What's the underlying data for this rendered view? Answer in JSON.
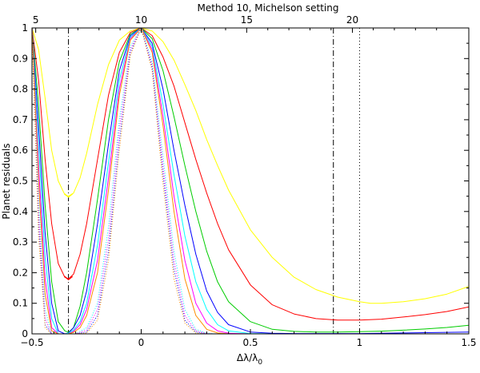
{
  "chart_data": {
    "type": "line",
    "title": "Method 10, Michelson setting",
    "xlabel": "Δλ/λ",
    "xlabel_subscript": "0",
    "ylabel": "Planet residuals",
    "xlim": [
      -0.5,
      1.5
    ],
    "ylim": [
      0,
      1
    ],
    "x_ticks": [
      "−0.5",
      "0",
      "0.5",
      "1",
      "1.5"
    ],
    "y_ticks": [
      "0",
      "0.1",
      "0.2",
      "0.3",
      "0.4",
      "0.5",
      "0.6",
      "0.7",
      "0.8",
      "0.9",
      "1"
    ],
    "top_axis": {
      "ticks": [
        "5",
        "10",
        "15",
        "20"
      ],
      "tick_positions_x": [
        -0.483,
        0,
        0.483,
        0.967
      ]
    },
    "grid": false,
    "legend": "none",
    "vertical_lines": [
      {
        "x": -0.333,
        "style": "dash-dot"
      },
      {
        "x": 0.88,
        "style": "dash-dot"
      },
      {
        "x": 1.0,
        "style": "dotted"
      }
    ],
    "series": [
      {
        "color": "#ffff00",
        "style": "solid",
        "min_x": -0.333,
        "min_y": 0.45,
        "x": [
          -0.5,
          -0.47,
          -0.44,
          -0.41,
          -0.38,
          -0.35,
          -0.333,
          -0.31,
          -0.28,
          -0.25,
          -0.2,
          -0.15,
          -0.1,
          -0.05,
          0,
          0.05,
          0.1,
          0.15,
          0.2,
          0.25,
          0.3,
          0.35,
          0.4,
          0.5,
          0.6,
          0.7,
          0.8,
          0.9,
          1.0,
          1.05,
          1.1,
          1.2,
          1.3,
          1.4,
          1.5
        ],
        "y": [
          1.0,
          0.93,
          0.77,
          0.6,
          0.5,
          0.455,
          0.45,
          0.46,
          0.51,
          0.59,
          0.75,
          0.88,
          0.96,
          0.99,
          1.0,
          0.99,
          0.955,
          0.895,
          0.815,
          0.73,
          0.635,
          0.55,
          0.47,
          0.34,
          0.25,
          0.185,
          0.145,
          0.12,
          0.105,
          0.1,
          0.1,
          0.105,
          0.115,
          0.13,
          0.155
        ]
      },
      {
        "color": "#ff0000",
        "style": "solid",
        "min_x": -0.333,
        "min_y": 0.18,
        "x": [
          -0.5,
          -0.47,
          -0.44,
          -0.41,
          -0.38,
          -0.35,
          -0.333,
          -0.31,
          -0.28,
          -0.25,
          -0.2,
          -0.15,
          -0.1,
          -0.05,
          0,
          0.05,
          0.1,
          0.15,
          0.2,
          0.25,
          0.3,
          0.35,
          0.4,
          0.5,
          0.6,
          0.7,
          0.8,
          0.9,
          1.0,
          1.1,
          1.2,
          1.3,
          1.4,
          1.5
        ],
        "y": [
          1.0,
          0.83,
          0.57,
          0.36,
          0.23,
          0.185,
          0.18,
          0.195,
          0.26,
          0.36,
          0.57,
          0.78,
          0.92,
          0.985,
          1.0,
          0.975,
          0.905,
          0.81,
          0.69,
          0.57,
          0.46,
          0.36,
          0.275,
          0.16,
          0.095,
          0.065,
          0.05,
          0.045,
          0.045,
          0.048,
          0.055,
          0.063,
          0.073,
          0.088
        ]
      },
      {
        "color": "#00cc00",
        "style": "solid",
        "x": [
          -0.5,
          -0.47,
          -0.44,
          -0.41,
          -0.38,
          -0.35,
          -0.333,
          -0.31,
          -0.28,
          -0.25,
          -0.2,
          -0.15,
          -0.1,
          -0.05,
          0,
          0.05,
          0.1,
          0.15,
          0.2,
          0.25,
          0.3,
          0.35,
          0.4,
          0.5,
          0.6,
          0.7,
          0.8,
          0.9,
          1.0,
          1.1,
          1.2,
          1.3,
          1.4,
          1.5
        ],
        "y": [
          1.0,
          0.75,
          0.42,
          0.17,
          0.04,
          0.01,
          0.005,
          0.02,
          0.09,
          0.2,
          0.44,
          0.7,
          0.89,
          0.98,
          1.0,
          0.965,
          0.86,
          0.71,
          0.55,
          0.4,
          0.27,
          0.17,
          0.105,
          0.04,
          0.015,
          0.008,
          0.006,
          0.006,
          0.007,
          0.009,
          0.012,
          0.016,
          0.021,
          0.028
        ]
      },
      {
        "color": "#0000ff",
        "style": "solid",
        "x": [
          -0.5,
          -0.47,
          -0.44,
          -0.41,
          -0.38,
          -0.35,
          -0.333,
          -0.31,
          -0.28,
          -0.25,
          -0.2,
          -0.15,
          -0.1,
          -0.05,
          0,
          0.05,
          0.1,
          0.15,
          0.2,
          0.25,
          0.3,
          0.35,
          0.4,
          0.5,
          0.6,
          0.7,
          0.8,
          0.9,
          1.0,
          1.1,
          1.2,
          1.3,
          1.4,
          1.5
        ],
        "y": [
          1.0,
          0.68,
          0.33,
          0.1,
          0.01,
          0.0,
          0.003,
          0.02,
          0.06,
          0.14,
          0.36,
          0.62,
          0.86,
          0.975,
          1.0,
          0.95,
          0.8,
          0.6,
          0.42,
          0.26,
          0.14,
          0.07,
          0.03,
          0.006,
          0.002,
          0.001,
          0.001,
          0.001,
          0.001,
          0.002,
          0.003,
          0.004,
          0.005,
          0.006
        ]
      },
      {
        "color": "#00ffff",
        "style": "solid",
        "x": [
          -0.5,
          -0.47,
          -0.44,
          -0.41,
          -0.38,
          -0.35,
          -0.333,
          -0.31,
          -0.28,
          -0.25,
          -0.2,
          -0.15,
          -0.1,
          -0.05,
          0,
          0.05,
          0.1,
          0.15,
          0.2,
          0.25,
          0.3,
          0.35,
          0.4,
          0.5,
          0.6,
          0.8,
          1.0,
          1.2,
          1.5
        ],
        "y": [
          1.0,
          0.62,
          0.25,
          0.05,
          0.0,
          0.0,
          0.002,
          0.012,
          0.04,
          0.1,
          0.29,
          0.56,
          0.83,
          0.97,
          1.0,
          0.94,
          0.75,
          0.52,
          0.32,
          0.17,
          0.08,
          0.03,
          0.01,
          0.001,
          0.0,
          0.0,
          0.0,
          0.0,
          0.0
        ]
      },
      {
        "color": "#ff00ff",
        "style": "solid",
        "x": [
          -0.5,
          -0.47,
          -0.44,
          -0.41,
          -0.38,
          -0.35,
          -0.333,
          -0.31,
          -0.28,
          -0.25,
          -0.2,
          -0.15,
          -0.1,
          -0.05,
          0,
          0.05,
          0.1,
          0.15,
          0.2,
          0.25,
          0.3,
          0.35,
          0.4,
          0.5,
          0.6,
          0.8,
          1.0,
          1.2,
          1.5
        ],
        "y": [
          1.0,
          0.55,
          0.18,
          0.02,
          0.0,
          0.0,
          0.0,
          0.008,
          0.03,
          0.08,
          0.24,
          0.51,
          0.8,
          0.965,
          1.0,
          0.93,
          0.71,
          0.45,
          0.24,
          0.1,
          0.035,
          0.01,
          0.002,
          0.0,
          0.0,
          0.0,
          0.0,
          0.0,
          0.0
        ]
      },
      {
        "color": "#ff8c00",
        "style": "solid",
        "x": [
          -0.5,
          -0.47,
          -0.44,
          -0.41,
          -0.38,
          -0.35,
          -0.333,
          -0.31,
          -0.28,
          -0.25,
          -0.2,
          -0.15,
          -0.1,
          -0.05,
          0,
          0.05,
          0.1,
          0.15,
          0.2,
          0.25,
          0.3,
          0.35,
          0.4,
          0.5,
          0.6,
          0.8,
          1.0,
          1.2,
          1.5
        ],
        "y": [
          1.0,
          0.5,
          0.13,
          0.01,
          0.0,
          0.0,
          0.0,
          0.005,
          0.02,
          0.06,
          0.2,
          0.47,
          0.78,
          0.96,
          1.0,
          0.92,
          0.68,
          0.4,
          0.18,
          0.06,
          0.015,
          0.003,
          0.0,
          0.0,
          0.0,
          0.0,
          0.0,
          0.0,
          0.0
        ]
      },
      {
        "color": "#00ffff",
        "style": "dotted",
        "x": [
          -0.5,
          -0.47,
          -0.44,
          -0.41,
          -0.38,
          -0.35,
          -0.3,
          -0.25,
          -0.2,
          -0.15,
          -0.1,
          -0.05,
          0,
          0.05,
          0.1,
          0.15,
          0.2,
          0.25,
          0.3,
          0.35,
          0.5,
          0.8,
          1.0,
          1.5
        ],
        "y": [
          1.0,
          0.45,
          0.08,
          0.0,
          0.0,
          0.0,
          0.0,
          0.02,
          0.1,
          0.35,
          0.7,
          0.94,
          1.0,
          0.89,
          0.58,
          0.27,
          0.08,
          0.015,
          0.002,
          0.0,
          0.0,
          0.0,
          0.0,
          0.0
        ]
      },
      {
        "color": "#ff00ff",
        "style": "dotted",
        "x": [
          -0.5,
          -0.47,
          -0.44,
          -0.41,
          -0.38,
          -0.35,
          -0.3,
          -0.25,
          -0.2,
          -0.15,
          -0.1,
          -0.05,
          0,
          0.05,
          0.1,
          0.15,
          0.2,
          0.25,
          0.3,
          0.35,
          0.5,
          0.8,
          1.0,
          1.5
        ],
        "y": [
          1.0,
          0.4,
          0.05,
          0.0,
          0.0,
          0.0,
          0.0,
          0.012,
          0.08,
          0.31,
          0.67,
          0.93,
          1.0,
          0.88,
          0.55,
          0.24,
          0.06,
          0.01,
          0.001,
          0.0,
          0.0,
          0.0,
          0.0,
          0.0
        ]
      },
      {
        "color": "#0000ff",
        "style": "dotted",
        "x": [
          -0.5,
          -0.47,
          -0.44,
          -0.41,
          -0.38,
          -0.35,
          -0.3,
          -0.25,
          -0.2,
          -0.15,
          -0.1,
          -0.05,
          0,
          0.05,
          0.1,
          0.15,
          0.2,
          0.25,
          0.3,
          0.35,
          0.5,
          0.8,
          1.0,
          1.5
        ],
        "y": [
          1.0,
          0.36,
          0.03,
          0.0,
          0.0,
          0.0,
          0.0,
          0.006,
          0.06,
          0.27,
          0.63,
          0.92,
          1.0,
          0.87,
          0.52,
          0.21,
          0.045,
          0.006,
          0.0,
          0.0,
          0.0,
          0.0,
          0.0,
          0.0
        ]
      },
      {
        "color": "#ff8c00",
        "style": "dotted",
        "x": [
          -0.5,
          -0.47,
          -0.44,
          -0.41,
          -0.38,
          -0.35,
          -0.3,
          -0.25,
          -0.2,
          -0.15,
          -0.1,
          -0.05,
          0,
          0.05,
          0.1,
          0.15,
          0.2,
          0.25,
          0.3,
          0.35,
          0.5,
          0.8,
          1.0,
          1.5
        ],
        "y": [
          1.0,
          0.32,
          0.02,
          0.0,
          0.0,
          0.0,
          0.0,
          0.003,
          0.045,
          0.24,
          0.6,
          0.91,
          1.0,
          0.86,
          0.49,
          0.18,
          0.035,
          0.003,
          0.0,
          0.0,
          0.0,
          0.0,
          0.0,
          0.0
        ]
      }
    ]
  }
}
